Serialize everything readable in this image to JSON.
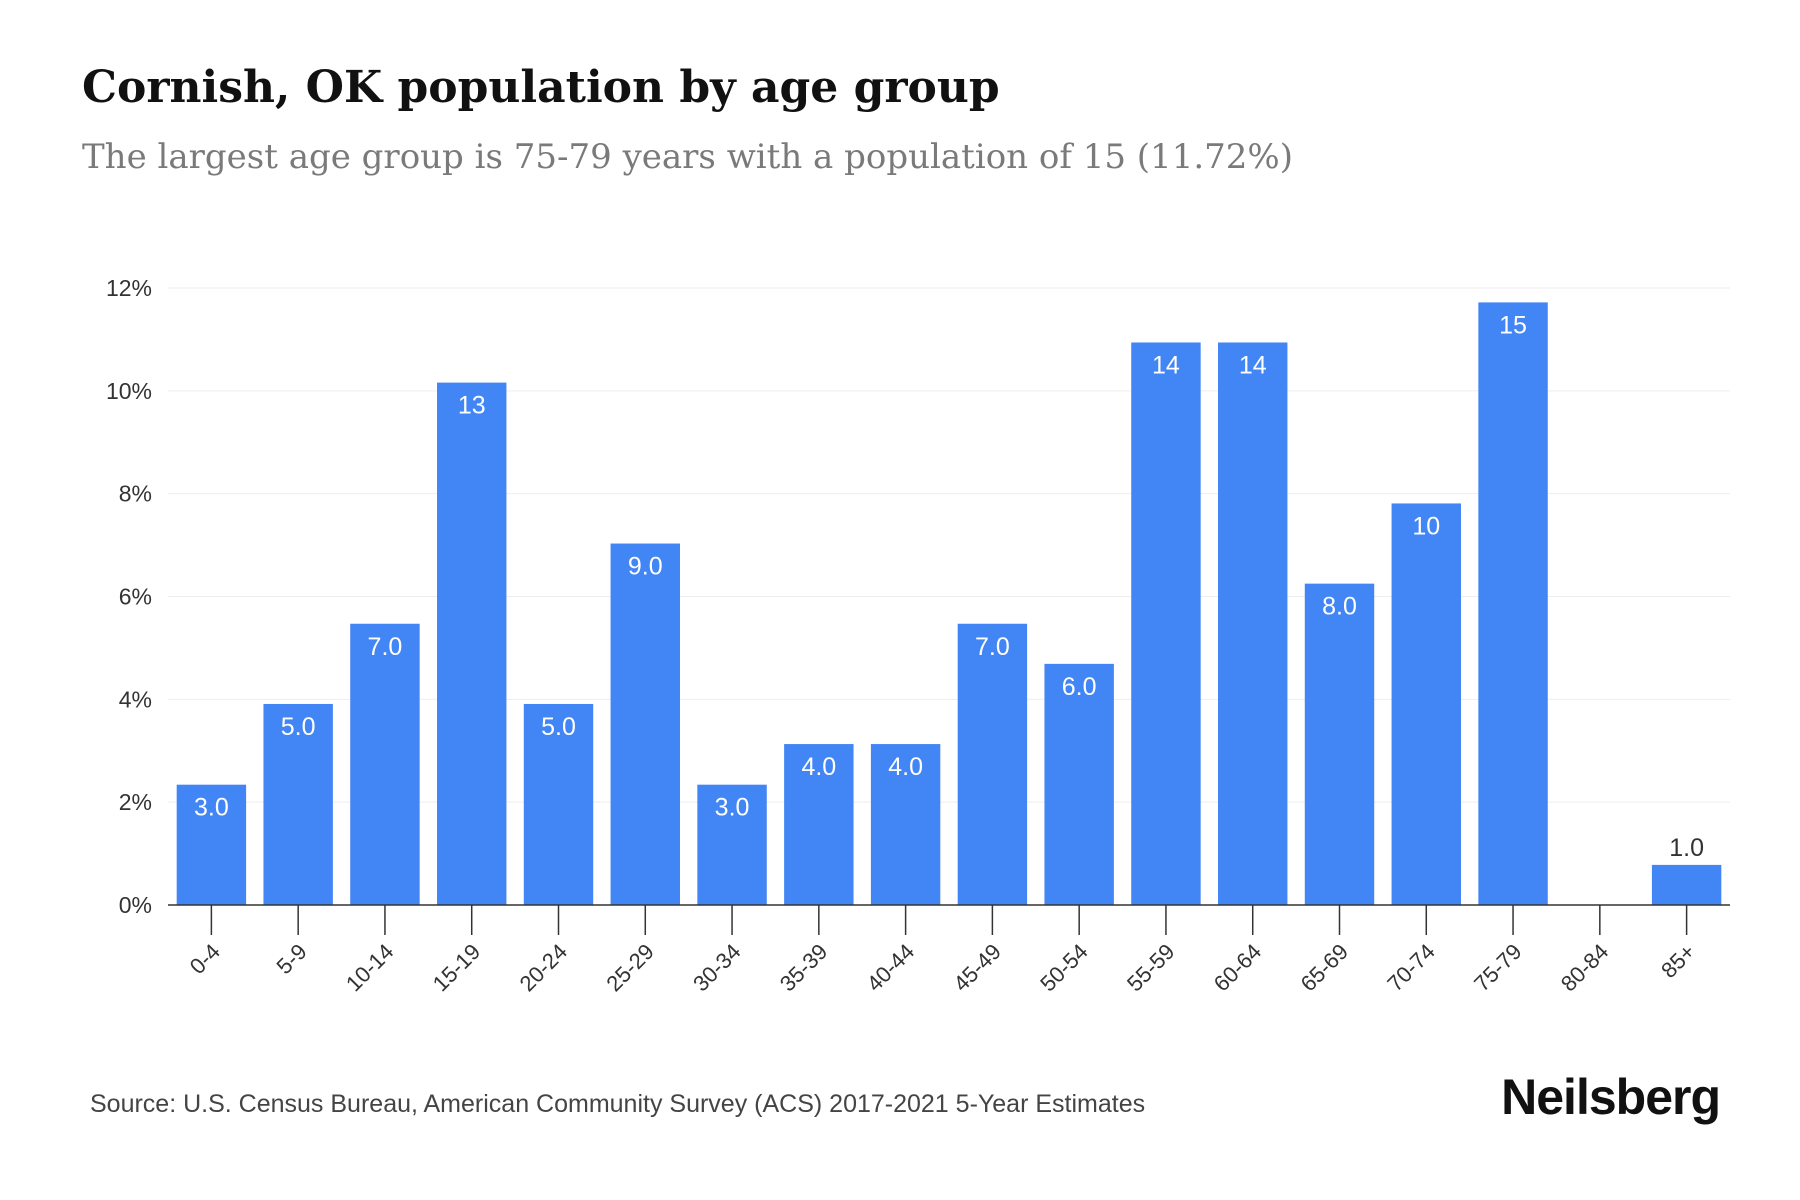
{
  "title": "Cornish, OK population by age group",
  "subtitle": "The largest age group is 75-79 years with a population of 15 (11.72%)",
  "source": "Source: U.S. Census Bureau, American Community Survey (ACS) 2017-2021 5-Year Estimates",
  "brand": "Neilsberg",
  "colors": {
    "bar": "#4285f4",
    "grid": "#eeeeee",
    "axis": "#333333"
  },
  "chart_data": {
    "type": "bar",
    "categories": [
      "0-4",
      "5-9",
      "10-14",
      "15-19",
      "20-24",
      "25-29",
      "30-34",
      "35-39",
      "40-44",
      "45-49",
      "50-54",
      "55-59",
      "60-64",
      "65-69",
      "70-74",
      "75-79",
      "80-84",
      "85+"
    ],
    "values": [
      2.34,
      3.91,
      5.47,
      10.16,
      3.91,
      7.03,
      2.34,
      3.13,
      3.13,
      5.47,
      4.69,
      10.94,
      10.94,
      6.25,
      7.81,
      11.72,
      0,
      0.78
    ],
    "data_labels": [
      "3.0",
      "5.0",
      "7.0",
      "13",
      "5.0",
      "9.0",
      "3.0",
      "4.0",
      "4.0",
      "7.0",
      "6.0",
      "14",
      "14",
      "8.0",
      "10",
      "15",
      "",
      "1.0"
    ],
    "yticks": [
      "0%",
      "2%",
      "4%",
      "6%",
      "8%",
      "10%",
      "12%"
    ],
    "ylim": [
      0,
      12
    ],
    "grid": true,
    "xlabel": "",
    "ylabel": ""
  }
}
